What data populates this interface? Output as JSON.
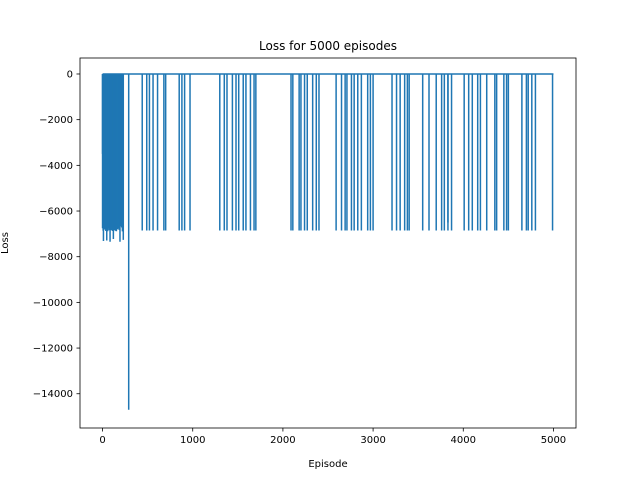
{
  "chart_data": {
    "type": "line",
    "title": "Loss for 5000 episodes",
    "xlabel": "Episode",
    "ylabel": "Loss",
    "xlim": [
      -250,
      5250
    ],
    "ylim": [
      -15500,
      700
    ],
    "xticks": [
      0,
      1000,
      2000,
      3000,
      4000,
      5000
    ],
    "yticks": [
      0,
      -2000,
      -4000,
      -6000,
      -8000,
      -10000,
      -12000,
      -14000
    ],
    "grid": false,
    "line_color": "#1f77b4",
    "series": [
      {
        "baseline": 0,
        "dense_region": {
          "x_start": 0,
          "x_end": 300,
          "dense_x_end": 230,
          "spike_count": 70,
          "min": -7400,
          "typical_min": -6900,
          "initial_value": -3500
        },
        "extreme_spike": {
          "x": 290,
          "y": -14700
        },
        "sparse_spike_x": [
          440,
          490,
          520,
          560,
          610,
          680,
          700,
          850,
          880,
          910,
          970,
          1300,
          1350,
          1380,
          1440,
          1480,
          1510,
          1560,
          1590,
          1640,
          1680,
          1700,
          2090,
          2110,
          2180,
          2200,
          2240,
          2270,
          2330,
          2370,
          2400,
          2590,
          2650,
          2690,
          2710,
          2760,
          2790,
          2830,
          2870,
          2940,
          2970,
          3000,
          3210,
          3260,
          3300,
          3350,
          3380,
          3400,
          3550,
          3620,
          3700,
          3760,
          3790,
          3830,
          3870,
          4010,
          4060,
          4100,
          4160,
          4190,
          4260,
          4350,
          4370,
          4450,
          4480,
          4500,
          4650,
          4700,
          4720,
          4760,
          4800,
          4990
        ],
        "sparse_spike_value": -6850,
        "extra_spike": {
          "x": 3830,
          "y": -6500
        }
      }
    ]
  }
}
